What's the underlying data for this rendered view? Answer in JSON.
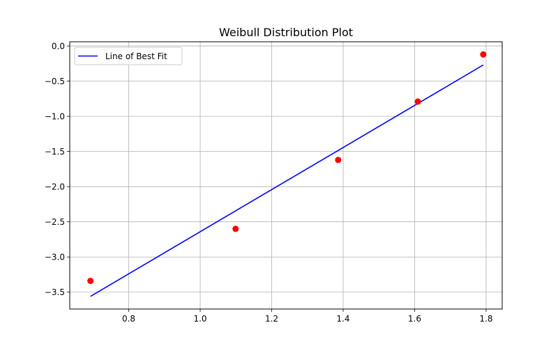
{
  "chart_data": {
    "type": "scatter",
    "title": "Weibull Distribution Plot",
    "xlabel": "",
    "ylabel": "",
    "xlim": [
      0.635,
      1.845
    ],
    "ylim": [
      -3.74,
      0.06
    ],
    "xticks": [
      0.8,
      1.0,
      1.2,
      1.4,
      1.6,
      1.8
    ],
    "yticks": [
      0.0,
      -0.5,
      -1.0,
      -1.5,
      -2.0,
      -2.5,
      -3.0,
      -3.5
    ],
    "xtick_labels": [
      "0.8",
      "1.0",
      "1.2",
      "1.4",
      "1.6",
      "1.8"
    ],
    "ytick_labels": [
      "0.0",
      "−0.5",
      "−1.0",
      "−1.5",
      "−2.0",
      "−2.5",
      "−3.0",
      "−3.5"
    ],
    "grid": true,
    "legend_position": "top-left",
    "points": {
      "color": "#ff0000",
      "x": [
        0.693,
        1.099,
        1.386,
        1.609,
        1.792
      ],
      "y": [
        -3.34,
        -2.6,
        -1.62,
        -0.79,
        -0.12
      ]
    },
    "fit_line": {
      "name": "Line of Best Fit",
      "color": "#0000ff",
      "x": [
        0.693,
        1.792
      ],
      "y": [
        -3.56,
        -0.27
      ]
    }
  }
}
